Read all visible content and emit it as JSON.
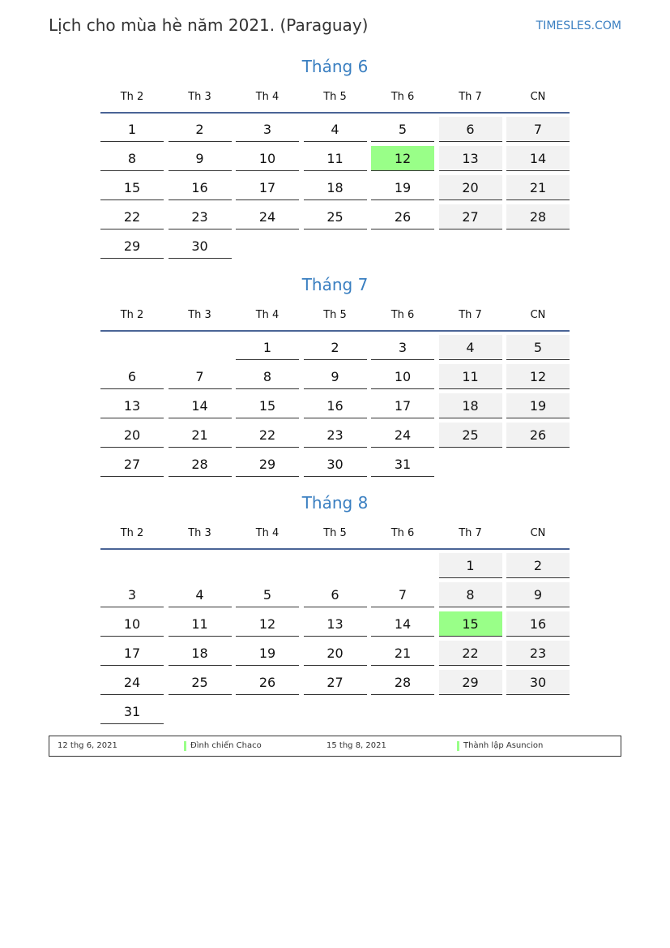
{
  "header": {
    "title": "Lịch cho mùa hè năm 2021. (Paraguay)",
    "site": "TIMESLES.COM"
  },
  "weekdays": [
    "Th 2",
    "Th 3",
    "Th 4",
    "Th 5",
    "Th 6",
    "Th 7",
    "CN"
  ],
  "colors": {
    "weekend": "#f2f2f2",
    "holiday": "#99ff88",
    "accent": "#3a7fc1"
  },
  "months": [
    {
      "title": "Tháng 6",
      "start_weekday": 1,
      "days": 30,
      "holidays": [
        12
      ]
    },
    {
      "title": "Tháng 7",
      "start_weekday": 3,
      "days": 31,
      "holidays": []
    },
    {
      "title": "Tháng 8",
      "start_weekday": 6,
      "days": 31,
      "holidays": [
        15
      ]
    }
  ],
  "legend": [
    {
      "date": "12 thg 6, 2021",
      "name": "Đình chiến Chaco"
    },
    {
      "date": "15 thg 8, 2021",
      "name": "Thành lập Asuncion"
    }
  ]
}
